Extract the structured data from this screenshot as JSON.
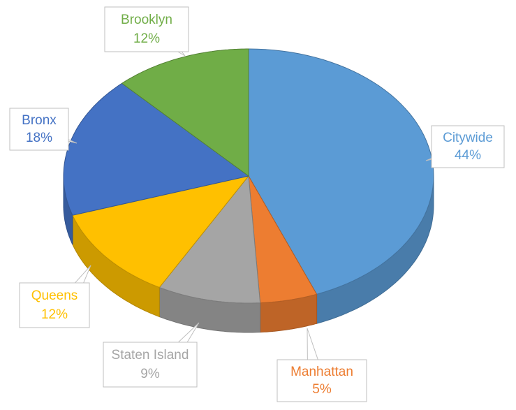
{
  "chart_data": {
    "type": "pie",
    "categories": [
      "Citywide",
      "Manhattan",
      "Staten Island",
      "Queens",
      "Bronx",
      "Brooklyn"
    ],
    "values": [
      44,
      5,
      9,
      12,
      18,
      12
    ],
    "value_labels": [
      "44%",
      "5%",
      "9%",
      "12%",
      "18%",
      "12%"
    ],
    "colors": [
      "#5b9bd5",
      "#ed7d31",
      "#a5a5a5",
      "#ffc000",
      "#4472c4",
      "#70ad47"
    ]
  }
}
